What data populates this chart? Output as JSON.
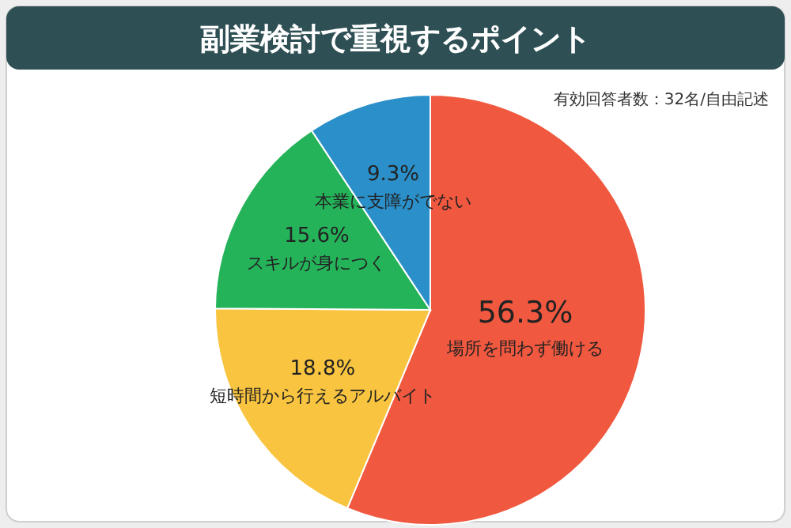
{
  "chart_data": {
    "type": "pie",
    "title": "副業検討で重視するポイント",
    "annotations": [
      "有効回答者数：32名/自由記述"
    ],
    "categories": [
      "場所を問わず働ける",
      "短時間から行えるアルバイト",
      "スキルが身につく",
      "本業に支障がでない"
    ],
    "values": [
      56.3,
      18.8,
      15.6,
      9.3
    ],
    "value_labels": [
      "56.3%",
      "18.8%",
      "15.6%",
      "9.3%"
    ],
    "colors": [
      "#f0583f",
      "#f9c43f",
      "#25b35a",
      "#2b8fc9"
    ]
  }
}
